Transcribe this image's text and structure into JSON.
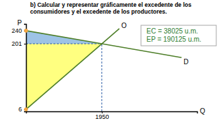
{
  "chart_data": {
    "type": "line",
    "title": "b) Calcular y representar gráficamente el excedente de los consumidores y el excedente de los productores.",
    "x_label": "Q",
    "y_label": "P",
    "xlim": [
      0,
      4400
    ],
    "ylim": [
      0,
      260
    ],
    "xticks": [
      1950
    ],
    "yticks": [
      6,
      201,
      240
    ],
    "series": [
      {
        "name": "O",
        "color": "#4f7f2a",
        "x": [
          0,
          1950,
          2400
        ],
        "values": [
          6,
          201,
          246
        ]
      },
      {
        "name": "D",
        "color": "#4f7f2a",
        "x": [
          0,
          1950,
          4000
        ],
        "values": [
          240,
          201,
          160
        ]
      }
    ],
    "areas": [
      {
        "color": "#9dc3e6",
        "x": [
          0,
          1950
        ],
        "lower": [
          201,
          201
        ],
        "upper": [
          240,
          201
        ]
      },
      {
        "color": "#ffff80",
        "x": [
          0,
          1950
        ],
        "lower": [
          6,
          201
        ],
        "upper": [
          201,
          201
        ]
      }
    ],
    "equilibrium": {
      "x": 1950,
      "value": 201
    },
    "points": {
      "color": "#f4a742",
      "x": [
        0,
        0
      ],
      "values": [
        240,
        6
      ]
    },
    "annotations": [
      "EC = 38025 u.m.",
      "EP = 190125 u.m."
    ]
  }
}
